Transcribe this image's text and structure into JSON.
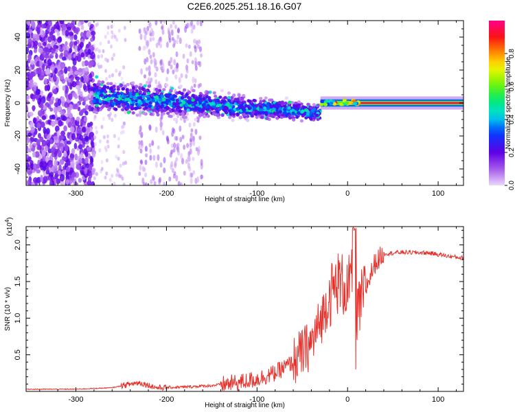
{
  "title": "C2E6.2025.251.18.16.G07",
  "chart_data": [
    {
      "type": "heatmap",
      "name": "spectrogram",
      "xlabel": "Height of straight line (km)",
      "ylabel": "Frequency (Hz)",
      "xlim": [
        -355,
        128
      ],
      "ylim": [
        -50,
        50
      ],
      "xticks": [
        -300,
        -200,
        -100,
        0,
        100
      ],
      "yticks": [
        -40,
        -20,
        0,
        20,
        40
      ],
      "colorbar": {
        "label": "Normalized spectral amplitude",
        "range": [
          0.0,
          1.0
        ],
        "ticks": [
          0.0,
          0.2,
          0.4,
          0.6,
          0.8
        ]
      },
      "features": [
        {
          "region": "noise",
          "x_range": [
            -355,
            -280
          ],
          "freq_range": [
            -50,
            50
          ],
          "amplitude": 0.15
        },
        {
          "region": "weak-noise",
          "x_range": [
            -230,
            -160
          ],
          "freq_range": [
            -50,
            50
          ],
          "amplitude": 0.05
        },
        {
          "region": "signal-band",
          "x_range": [
            -280,
            -30
          ],
          "center_freq_start": 4,
          "center_freq_end": -6,
          "amplitude": 0.25
        },
        {
          "region": "carrier-line",
          "x_range": [
            -30,
            128
          ],
          "center_freq": 0,
          "amplitude": 0.95
        }
      ]
    },
    {
      "type": "line",
      "name": "snr",
      "xlabel": "Height of straight line (km)",
      "ylabel": "SNR (10 * v/v)",
      "multiplier_label": "(x10",
      "multiplier_exp": "4",
      "xlim": [
        -355,
        128
      ],
      "ylim": [
        0.0,
        2.25
      ],
      "xticks": [
        -300,
        -200,
        -100,
        0,
        100
      ],
      "yticks": [
        0.5,
        1.0,
        1.5,
        2.0
      ],
      "color": "#e8302a",
      "keypoints": [
        [
          -355,
          0.03
        ],
        [
          -300,
          0.03
        ],
        [
          -260,
          0.05
        ],
        [
          -240,
          0.1
        ],
        [
          -230,
          0.12
        ],
        [
          -210,
          0.05
        ],
        [
          -180,
          0.06
        ],
        [
          -150,
          0.08
        ],
        [
          -120,
          0.12
        ],
        [
          -100,
          0.17
        ],
        [
          -80,
          0.25
        ],
        [
          -60,
          0.4
        ],
        [
          -40,
          0.65
        ],
        [
          -30,
          0.95
        ],
        [
          -20,
          1.3
        ],
        [
          -10,
          1.5
        ],
        [
          0,
          1.4
        ],
        [
          5,
          1.5
        ],
        [
          8,
          0.6
        ],
        [
          12,
          1.1
        ],
        [
          20,
          1.4
        ],
        [
          30,
          1.75
        ],
        [
          40,
          1.88
        ],
        [
          60,
          1.9
        ],
        [
          90,
          1.89
        ],
        [
          110,
          1.85
        ],
        [
          128,
          1.82
        ]
      ]
    }
  ]
}
